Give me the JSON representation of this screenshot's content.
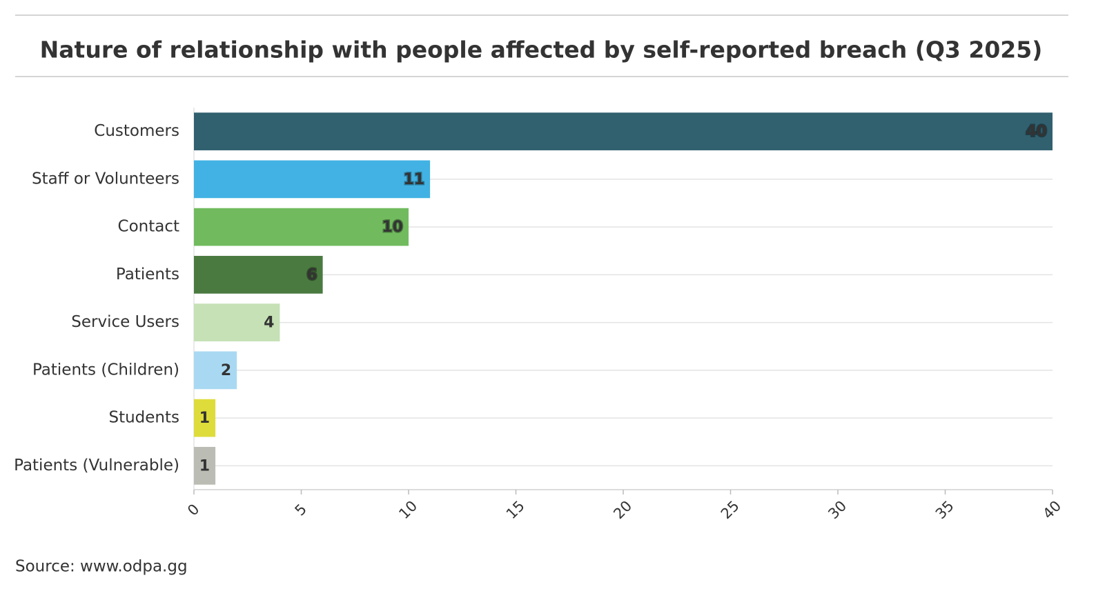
{
  "chart_data": {
    "type": "bar",
    "orientation": "horizontal",
    "title": "Nature of relationship with people affected by self-reported breach (Q3 2025)",
    "categories": [
      "Customers",
      "Staff or Volunteers",
      "Contact",
      "Patients",
      "Service Users",
      "Patients (Children)",
      "Students",
      "Patients (Vulnerable)"
    ],
    "values": [
      40,
      11,
      10,
      6,
      4,
      2,
      1,
      1
    ],
    "colors": [
      "#31606f",
      "#41b2e3",
      "#71bb5e",
      "#4a7a40",
      "#c5e1b5",
      "#a9d9f2",
      "#dedc3a",
      "#bbbcb4"
    ],
    "xlim": [
      0,
      40
    ],
    "xticks": [
      0,
      5,
      10,
      15,
      20,
      25,
      30,
      35,
      40
    ],
    "grid": true,
    "source": "Source: www.odpa.gg"
  }
}
